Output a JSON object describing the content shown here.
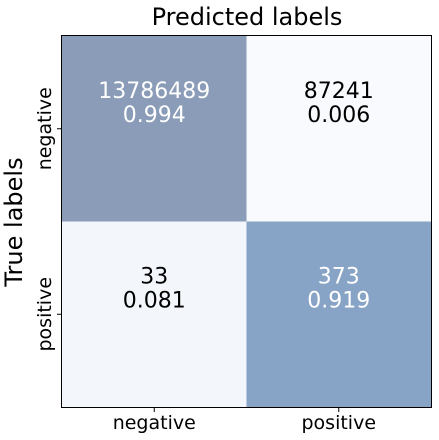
{
  "chart_data": {
    "type": "heatmap",
    "title": "Predicted labels",
    "ylabel": "True labels",
    "x_categories": [
      "negative",
      "positive"
    ],
    "y_categories": [
      "negative",
      "positive"
    ],
    "cells": [
      [
        {
          "count": "13786489",
          "rate": "0.994",
          "rate_value": 0.994
        },
        {
          "count": "87241",
          "rate": "0.006",
          "rate_value": 0.006
        }
      ],
      [
        {
          "count": "33",
          "rate": "0.081",
          "rate_value": 0.081
        },
        {
          "count": "373",
          "rate": "0.919",
          "rate_value": 0.919
        }
      ]
    ],
    "colors": {
      "high": "#8a9cb8",
      "high_alt": "#87a3c5",
      "low": "#f8fafd",
      "low_alt": "#f3f7fb",
      "text_light": "#ffffff",
      "text_dark": "#000000"
    }
  }
}
